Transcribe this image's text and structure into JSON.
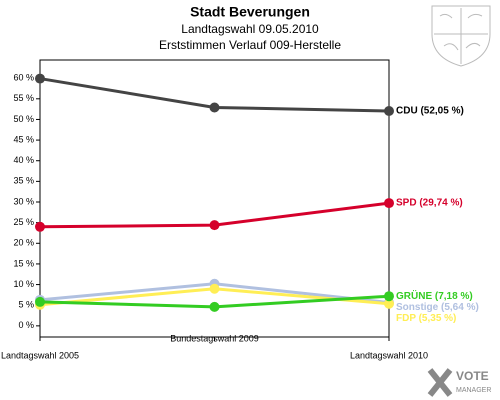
{
  "chart_data": {
    "type": "line",
    "title": "Stadt Beverungen",
    "subtitle": "Landtagswahl 09.05.2010",
    "subtitle2": "Erststimmen Verlauf 009-Herstelle",
    "categories": [
      "Landtagswahl 2005",
      "Bundestagswahl 2009",
      "Landtagswahl 2010"
    ],
    "series": [
      {
        "color": "#444444",
        "values": [
          59.9,
          52.9,
          52.05
        ],
        "value_labels": [
          null,
          null,
          "CDU (52,05 %)"
        ]
      },
      {
        "color": "#d5002b",
        "values": [
          24.0,
          24.4,
          29.74
        ],
        "value_labels": [
          null,
          null,
          "SPD (29,74 %)"
        ]
      },
      {
        "color": "#b0c0e0",
        "values": [
          6.3,
          10.2,
          5.64
        ],
        "value_labels": [
          null,
          null,
          "Sonstige (5,64 %)"
        ]
      },
      {
        "color": "#ffee55",
        "values": [
          5.1,
          9.0,
          5.35
        ],
        "value_labels": [
          null,
          null,
          "FDP (5,35 %)"
        ]
      },
      {
        "color": "#33cc22",
        "values": [
          5.8,
          4.6,
          7.18
        ],
        "value_labels": [
          null,
          null,
          "GRÜNE (7,18 %)"
        ]
      }
    ],
    "ylim": [
      -2.7,
      64.4
    ],
    "yticks": [
      {
        "value": 0,
        "label": "0 %"
      },
      {
        "value": 5,
        "label": "5 %"
      },
      {
        "value": 10,
        "label": "10 %"
      },
      {
        "value": 15,
        "label": "15 %"
      },
      {
        "value": 20,
        "label": "20 %"
      },
      {
        "value": 25,
        "label": "25 %"
      },
      {
        "value": 30,
        "label": "30 %"
      },
      {
        "value": 35,
        "label": "35 %"
      },
      {
        "value": 40,
        "label": "40 %"
      },
      {
        "value": 45,
        "label": "45 %"
      },
      {
        "value": 50,
        "label": "50 %"
      },
      {
        "value": 55,
        "label": "55 %"
      },
      {
        "value": 60,
        "label": "60 %"
      }
    ],
    "brand": [
      "VOTE",
      "MANAGER"
    ]
  }
}
